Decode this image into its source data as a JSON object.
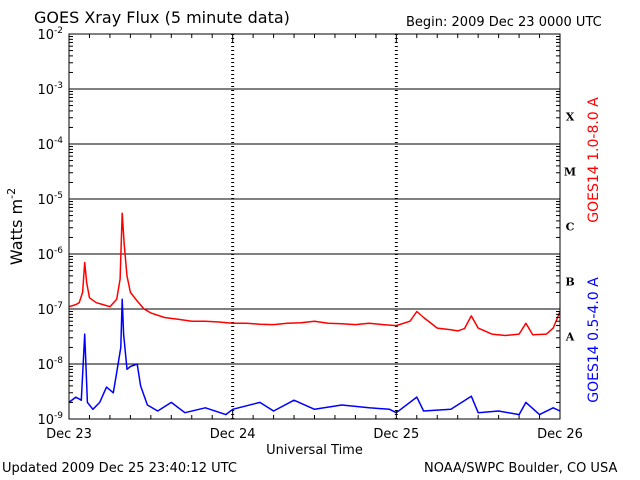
{
  "header": {
    "title": "GOES Xray Flux (5 minute data)",
    "begin": "Begin:  2009 Dec 23 0000 UTC"
  },
  "footer": {
    "updated": "Updated 2009 Dec 25 23:40:12 UTC",
    "credit": "NOAA/SWPC Boulder, CO USA"
  },
  "chart_data": {
    "type": "line",
    "ylabel": "Watts m",
    "ylabel_superscript": "-2",
    "xlabel": "Universal Time",
    "y_scale": "log",
    "ylim": [
      1e-09,
      0.01
    ],
    "y_tick_exponents": [
      "-2",
      "-3",
      "-4",
      "-5",
      "-6",
      "-7",
      "-8",
      "-9"
    ],
    "y_tick_base": "10",
    "x_range_hours": [
      0,
      72
    ],
    "x_ticks": [
      {
        "label": "Dec 23",
        "hour": 0
      },
      {
        "label": "Dec 24",
        "hour": 24
      },
      {
        "label": "Dec 25",
        "hour": 48
      },
      {
        "label": "Dec 26",
        "hour": 72
      }
    ],
    "grid": "horizontal at each decade; dashed vertical at day boundaries",
    "flare_classes": [
      {
        "label": "X",
        "band_low": 0.0001
      },
      {
        "label": "M",
        "band_low": 1e-05
      },
      {
        "label": "C",
        "band_low": 1e-06
      },
      {
        "label": "B",
        "band_low": 1e-07
      },
      {
        "label": "A",
        "band_low": 1e-08
      }
    ],
    "series": [
      {
        "name": "GOES14 1.0-8.0 A",
        "color": "#ff0000",
        "points": [
          [
            0,
            1.1e-07
          ],
          [
            1,
            1.2e-07
          ],
          [
            1.5,
            1.3e-07
          ],
          [
            2,
            2e-07
          ],
          [
            2.3,
            7e-07
          ],
          [
            2.6,
            3e-07
          ],
          [
            3,
            1.6e-07
          ],
          [
            4,
            1.3e-07
          ],
          [
            5,
            1.2e-07
          ],
          [
            6,
            1.1e-07
          ],
          [
            7,
            1.5e-07
          ],
          [
            7.5,
            3.5e-07
          ],
          [
            7.8,
            5.5e-06
          ],
          [
            8.1,
            1.5e-06
          ],
          [
            8.5,
            4e-07
          ],
          [
            9,
            2e-07
          ],
          [
            10,
            1.4e-07
          ],
          [
            11,
            1e-07
          ],
          [
            12,
            8.5e-08
          ],
          [
            14,
            7e-08
          ],
          [
            16,
            6.5e-08
          ],
          [
            18,
            6e-08
          ],
          [
            20,
            6e-08
          ],
          [
            22,
            5.8e-08
          ],
          [
            24,
            5.5e-08
          ],
          [
            26,
            5.5e-08
          ],
          [
            28,
            5.3e-08
          ],
          [
            30,
            5.2e-08
          ],
          [
            32,
            5.5e-08
          ],
          [
            34,
            5.6e-08
          ],
          [
            36,
            6e-08
          ],
          [
            38,
            5.5e-08
          ],
          [
            40,
            5.4e-08
          ],
          [
            42,
            5.2e-08
          ],
          [
            44,
            5.5e-08
          ],
          [
            46,
            5.2e-08
          ],
          [
            48,
            5e-08
          ],
          [
            50,
            6e-08
          ],
          [
            51,
            9e-08
          ],
          [
            52,
            7e-08
          ],
          [
            54,
            4.5e-08
          ],
          [
            56,
            4.2e-08
          ],
          [
            57,
            4e-08
          ],
          [
            58,
            4.4e-08
          ],
          [
            59,
            7.5e-08
          ],
          [
            60,
            4.5e-08
          ],
          [
            62,
            3.5e-08
          ],
          [
            64,
            3.3e-08
          ],
          [
            66,
            3.5e-08
          ],
          [
            67,
            5.5e-08
          ],
          [
            68,
            3.4e-08
          ],
          [
            70,
            3.5e-08
          ],
          [
            71,
            4.5e-08
          ],
          [
            72,
            9e-08
          ]
        ]
      },
      {
        "name": "GOES14 0.5-4.0 A",
        "color": "#0000ff",
        "points": [
          [
            0,
            2e-09
          ],
          [
            1,
            2.5e-09
          ],
          [
            1.8,
            2.2e-09
          ],
          [
            2.3,
            3.5e-08
          ],
          [
            2.7,
            2e-09
          ],
          [
            3.5,
            1.5e-09
          ],
          [
            4.5,
            2e-09
          ],
          [
            5.5,
            3.8e-09
          ],
          [
            6.5,
            3e-09
          ],
          [
            7,
            7e-09
          ],
          [
            7.6,
            2e-08
          ],
          [
            7.8,
            1.5e-07
          ],
          [
            8,
            3.5e-08
          ],
          [
            8.5,
            8e-09
          ],
          [
            9,
            9e-09
          ],
          [
            10,
            1e-08
          ],
          [
            10.5,
            4e-09
          ],
          [
            11.5,
            1.8e-09
          ],
          [
            13,
            1.4e-09
          ],
          [
            15,
            2e-09
          ],
          [
            17,
            1.3e-09
          ],
          [
            20,
            1.6e-09
          ],
          [
            23,
            1.2e-09
          ],
          [
            24,
            1.5e-09
          ],
          [
            28,
            2e-09
          ],
          [
            30,
            1.4e-09
          ],
          [
            33,
            2.2e-09
          ],
          [
            36,
            1.5e-09
          ],
          [
            40,
            1.8e-09
          ],
          [
            44,
            1.6e-09
          ],
          [
            47,
            1.5e-09
          ],
          [
            48,
            1.3e-09
          ],
          [
            51,
            2.5e-09
          ],
          [
            52,
            1.4e-09
          ],
          [
            56,
            1.5e-09
          ],
          [
            59,
            2.6e-09
          ],
          [
            60,
            1.3e-09
          ],
          [
            63,
            1.4e-09
          ],
          [
            66,
            1.2e-09
          ],
          [
            67,
            2e-09
          ],
          [
            69,
            1.2e-09
          ],
          [
            71,
            1.6e-09
          ],
          [
            72,
            1.4e-09
          ]
        ]
      }
    ]
  }
}
